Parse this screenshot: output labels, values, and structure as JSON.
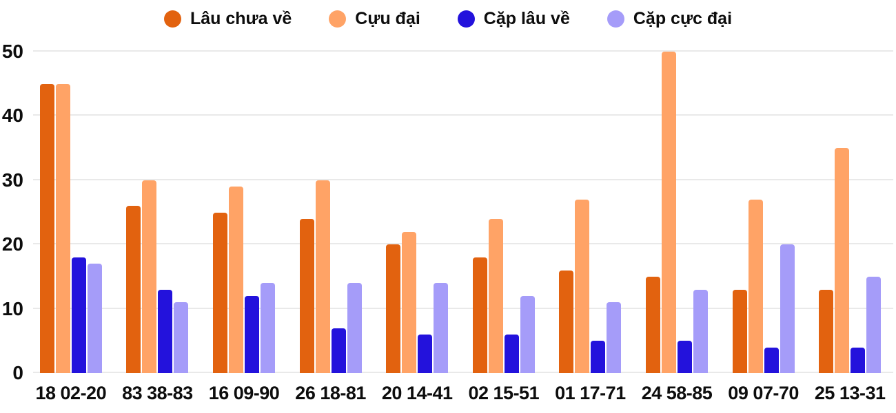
{
  "chart_data": {
    "type": "bar",
    "title": "",
    "xlabel": "",
    "ylabel": "",
    "categories": [
      "18 02-20",
      "83 38-83",
      "16 09-90",
      "26 18-81",
      "20 14-41",
      "02 15-51",
      "01 17-71",
      "24 58-85",
      "09 07-70",
      "25 13-31"
    ],
    "series": [
      {
        "name": "Lâu chưa về",
        "color": "#E2620F",
        "values": [
          45,
          26,
          25,
          24,
          20,
          18,
          16,
          15,
          13,
          13
        ]
      },
      {
        "name": "Cựu đại",
        "color": "#FFA366",
        "values": [
          45,
          30,
          29,
          30,
          22,
          24,
          27,
          50,
          27,
          35
        ]
      },
      {
        "name": "Cặp lâu về",
        "color": "#2312DC",
        "values": [
          18,
          13,
          12,
          7,
          6,
          6,
          5,
          5,
          4,
          4
        ]
      },
      {
        "name": "Cặp cực đại",
        "color": "#A59CF9",
        "values": [
          17,
          11,
          14,
          14,
          14,
          12,
          11,
          13,
          20,
          15
        ]
      }
    ],
    "ylim": [
      0,
      50
    ],
    "yticks": [
      0,
      10,
      20,
      30,
      40,
      50
    ],
    "grid": true,
    "legend_position": "top",
    "background_color": "#FFFFFF",
    "grid_color": "#E9E9E9",
    "text_color": "#0D0D0D"
  }
}
